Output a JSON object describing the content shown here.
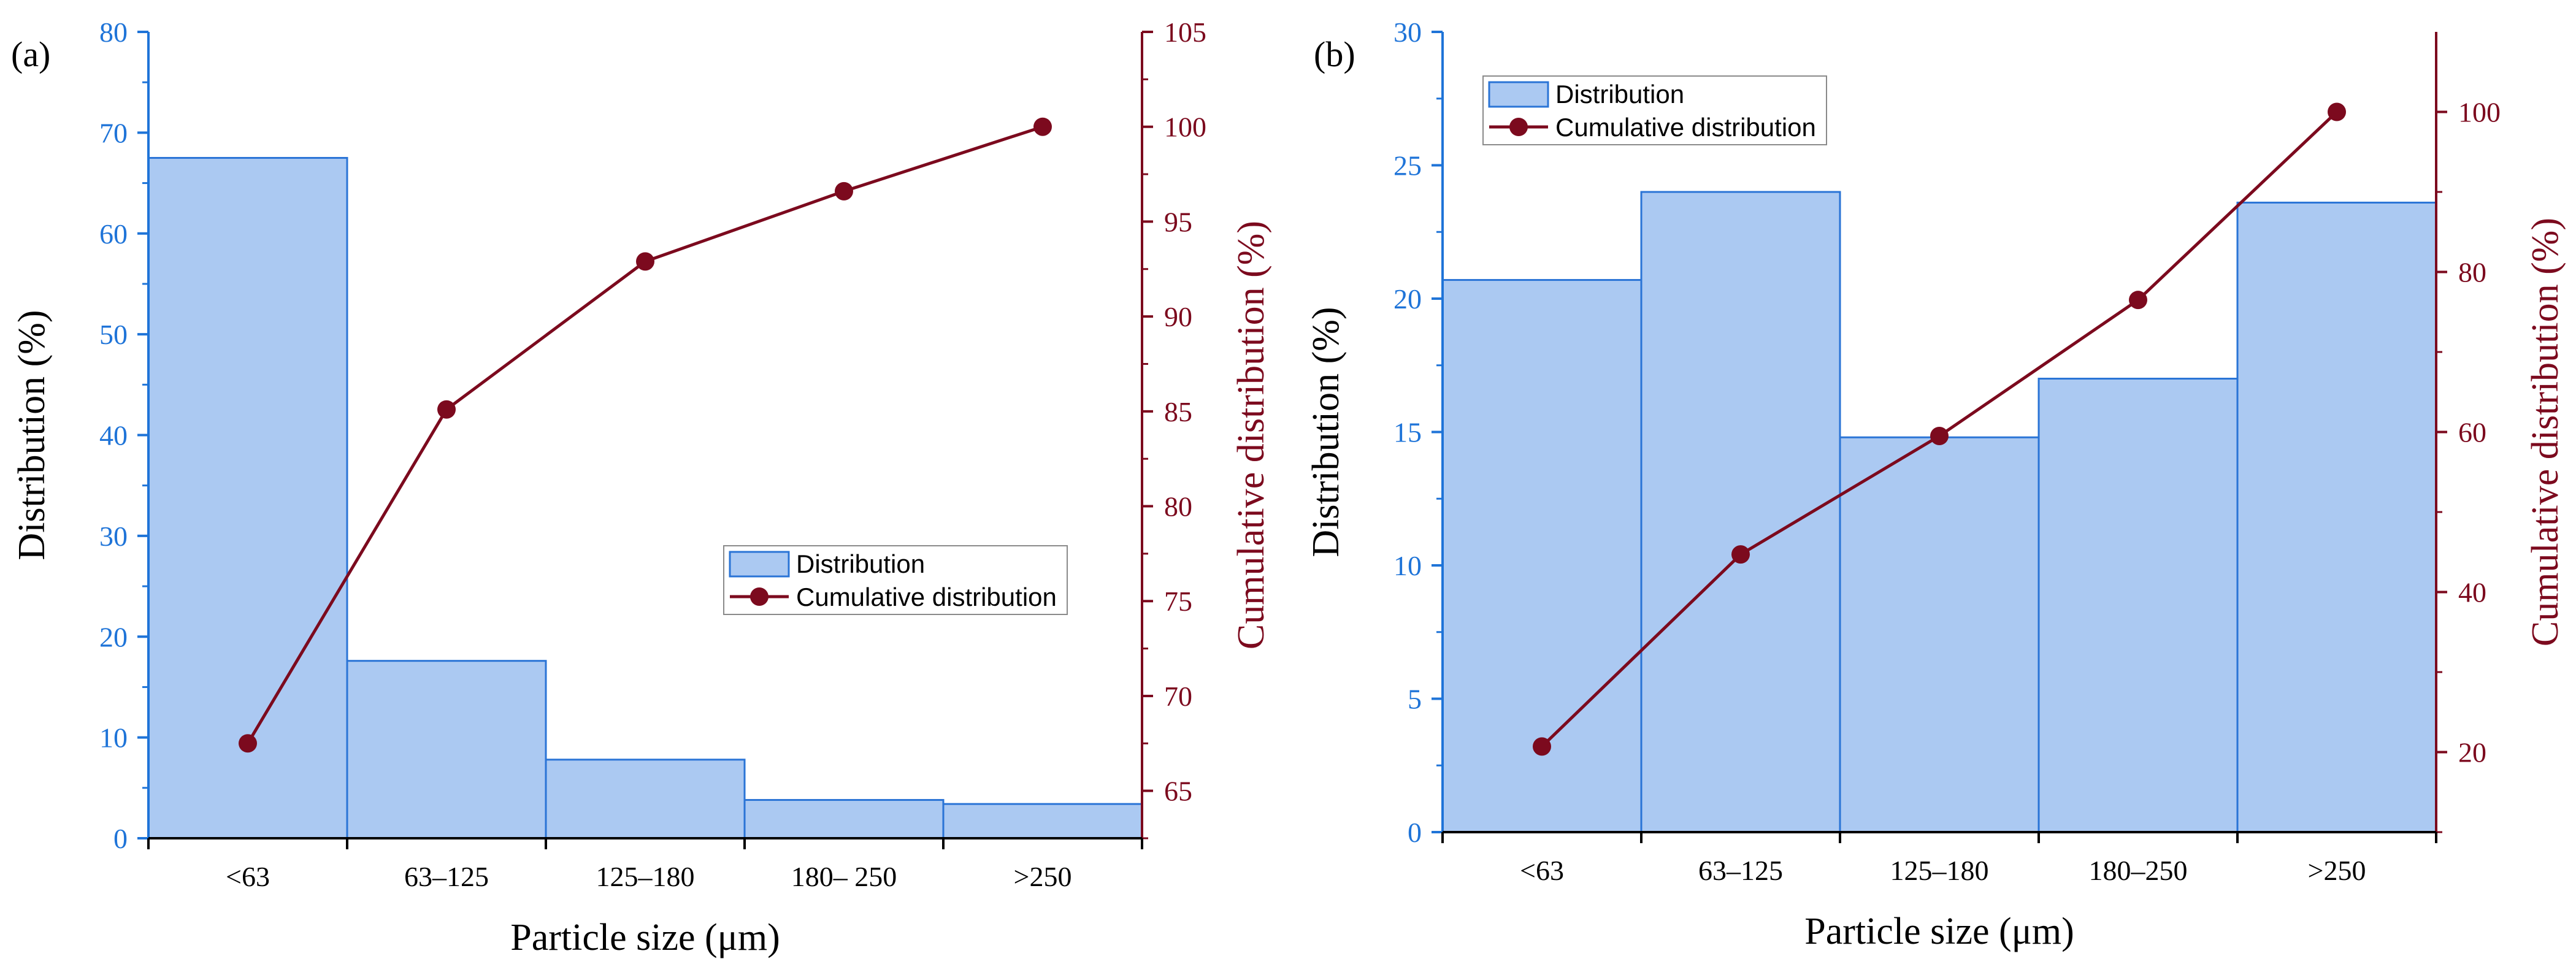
{
  "colors": {
    "left_axis": "#1f74d8",
    "right_axis": "#7c0a1e",
    "bar_fill": "#abc9f2",
    "bar_stroke": "#2a74d6",
    "line": "#7c0a1e",
    "black": "#000000"
  },
  "chart_data": [
    {
      "panel_label": "(a)",
      "type": "bar",
      "xlabel": "Particle size (μm)",
      "ylabel": "Distribution (%)",
      "y2label": "Cumulative distribution (%)",
      "categories": [
        "<63",
        "63–125",
        "125–180",
        "180– 250",
        ">250"
      ],
      "ylim": [
        0,
        80
      ],
      "yticks": [
        0,
        10,
        20,
        30,
        40,
        50,
        60,
        70,
        80
      ],
      "y2lim": [
        62.5,
        105
      ],
      "y2ticks": [
        65,
        70,
        75,
        80,
        85,
        90,
        95,
        100,
        105
      ],
      "series": [
        {
          "name": "Distribution",
          "type": "bar",
          "axis": "left",
          "values": [
            67.5,
            17.6,
            7.8,
            3.8,
            3.4
          ]
        },
        {
          "name": "Cumulative distribution",
          "type": "line",
          "axis": "right",
          "values": [
            67.5,
            85.1,
            92.9,
            96.6,
            100
          ]
        }
      ],
      "legend": {
        "position": "bottom-right",
        "items": [
          "Distribution",
          "Cumulative distribution"
        ]
      }
    },
    {
      "panel_label": "(b)",
      "type": "bar",
      "xlabel": "Particle size (μm)",
      "ylabel": "Distribution (%)",
      "y2label": "Cumulative distribution (%)",
      "categories": [
        "<63",
        "63–125",
        "125–180",
        "180–250",
        ">250"
      ],
      "ylim": [
        0,
        30
      ],
      "yticks": [
        0,
        5,
        10,
        15,
        20,
        25,
        30
      ],
      "y2lim": [
        10,
        110
      ],
      "y2ticks": [
        20,
        40,
        60,
        80,
        100
      ],
      "series": [
        {
          "name": "Distribution",
          "type": "bar",
          "axis": "left",
          "values": [
            20.7,
            24.0,
            14.8,
            17.0,
            23.6
          ]
        },
        {
          "name": "Cumulative distribution",
          "type": "line",
          "axis": "right",
          "values": [
            20.7,
            44.7,
            59.5,
            76.5,
            100
          ]
        }
      ],
      "legend": {
        "position": "top-left",
        "items": [
          "Distribution",
          "Cumulative distribution"
        ]
      }
    }
  ]
}
